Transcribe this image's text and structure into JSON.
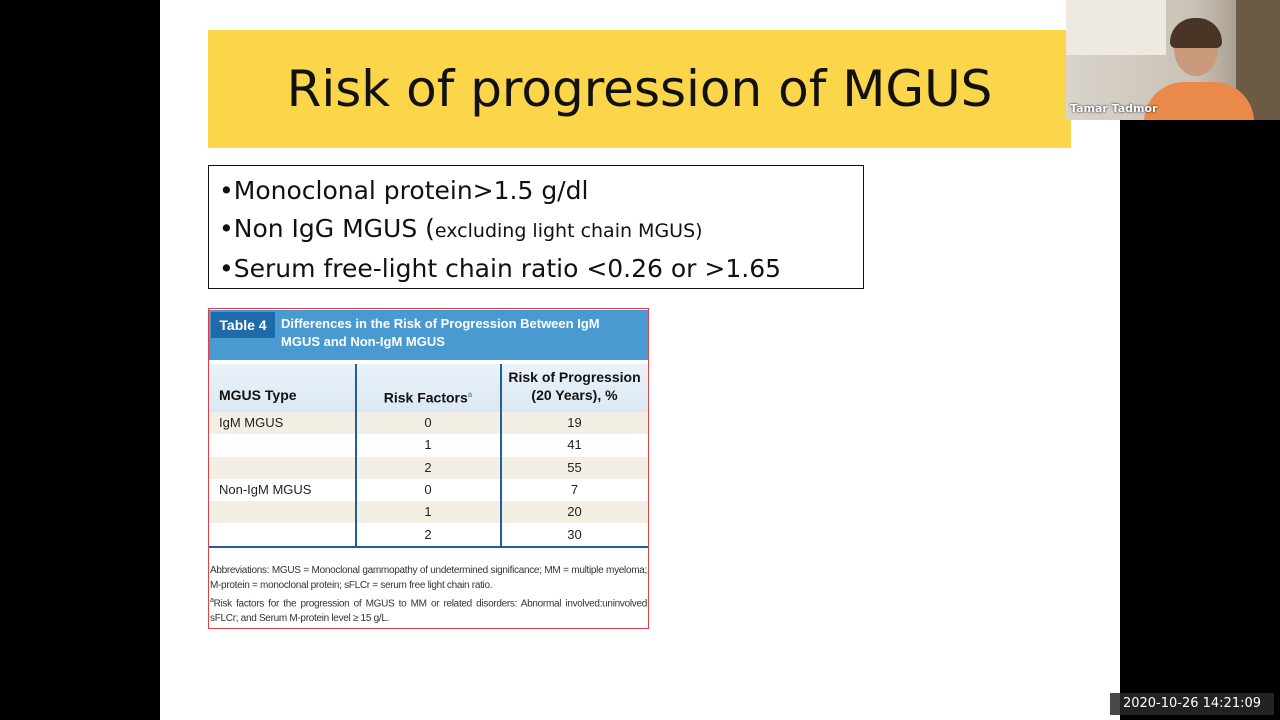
{
  "slide": {
    "title": "Risk of progression of MGUS",
    "bullets": [
      [
        "•Monoclonal protein>1.5 g/dl"
      ],
      [
        "•Non IgG MGUS (",
        "excluding light chain MGUS)"
      ],
      [
        "•Serum free-light chain ratio <0.26 or >1.65"
      ]
    ],
    "table": {
      "label": "Table 4",
      "caption": "Differences in the Risk of Progression Between IgM MGUS and Non-IgM MGUS",
      "columns": [
        "MGUS Type",
        "Risk Factors",
        "Risk of Progression (20 Years), %"
      ],
      "column_note": "a",
      "rows": [
        [
          "IgM MGUS",
          0,
          19
        ],
        [
          null,
          1,
          41
        ],
        [
          null,
          2,
          55
        ],
        [
          "Non-IgM MGUS",
          0,
          7
        ],
        [
          null,
          1,
          20
        ],
        [
          null,
          2,
          30
        ]
      ],
      "footnotes": [
        "Abbreviations: MGUS = Monoclonal gammopathy of undetermined significance; MM = multiple myeloma; M-protein = monoclonal protein; sFLCr = serum free light chain ratio.",
        {
          "marker": "a",
          "text": "Risk factors for the progression of MGUS to MM or related disorders: Abnormal involved:uninvolved sFLCr; and Serum M-protein level ≥ 15 g/L."
        }
      ]
    }
  },
  "video": {
    "participant": "Tamar Tadmor",
    "timestamp": "2020-10-26 14:21:09"
  }
}
